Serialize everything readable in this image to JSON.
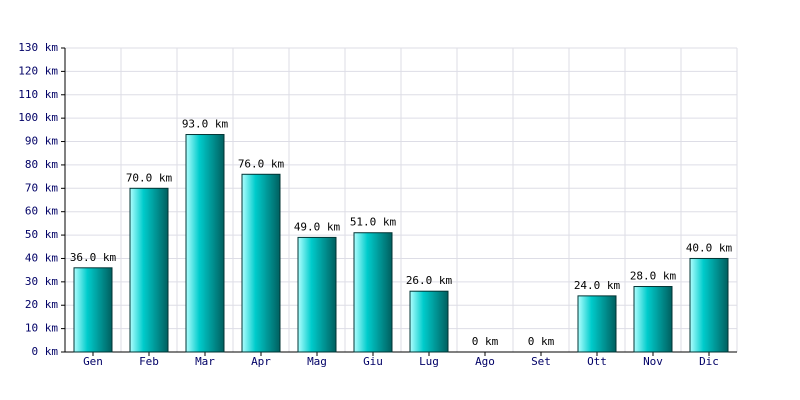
{
  "chart_data": {
    "type": "bar",
    "categories": [
      "Gen",
      "Feb",
      "Mar",
      "Apr",
      "Mag",
      "Giu",
      "Lug",
      "Ago",
      "Set",
      "Ott",
      "Nov",
      "Dic"
    ],
    "values": [
      36,
      70,
      93,
      76,
      49,
      51,
      26,
      0,
      0,
      24,
      28,
      40
    ],
    "value_labels": [
      "36.0 km",
      "70.0 km",
      "93.0 km",
      "76.0 km",
      "49.0 km",
      "51.0 km",
      "26.0 km",
      "0 km",
      "0 km",
      "24.0 km",
      "28.0 km",
      "40.0 km"
    ],
    "color": "#00cccc",
    "ylim": [
      0,
      130
    ],
    "yticks": [
      {
        "value": 0,
        "label": "0 km"
      },
      {
        "value": 10,
        "label": "10 km"
      },
      {
        "value": 20,
        "label": "20 km"
      },
      {
        "value": 30,
        "label": "30 km"
      },
      {
        "value": 40,
        "label": "40 km"
      },
      {
        "value": 50,
        "label": "50 km"
      },
      {
        "value": 60,
        "label": "60 km"
      },
      {
        "value": 70,
        "label": "70 km"
      },
      {
        "value": 80,
        "label": "80 km"
      },
      {
        "value": 90,
        "label": "90 km"
      },
      {
        "value": 100,
        "label": "100 km"
      },
      {
        "value": 110,
        "label": "110 km"
      },
      {
        "value": 120,
        "label": "120 km"
      },
      {
        "value": 130,
        "label": "130 km"
      }
    ],
    "grid": true
  }
}
